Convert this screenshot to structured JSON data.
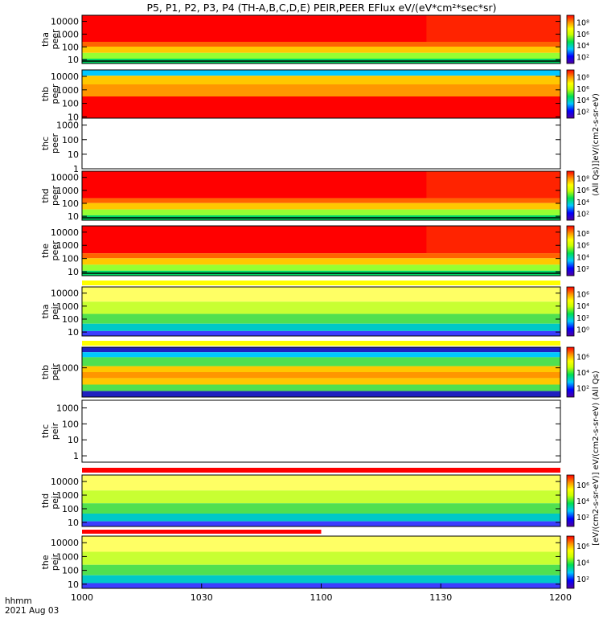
{
  "title": "P5, P1, P2, P3, P4 (TH-A,B,C,D,E) PEIR,PEER EFlux eV/(eV*cm²*sec*sr)",
  "colorbar_label_top": "(All Qs)]]eV/(cm2-s-sr-eV)",
  "colorbar_label_bottom": "[eV/(cm2-s-sr-eV)] eV/(cm2-s-sr-eV) (All Qs)",
  "x_footer": {
    "unit": "hhmm",
    "date": "2021 Aug 03"
  },
  "chart_data": {
    "type": "heatmap",
    "x": {
      "ticks": [
        "1000",
        "1030",
        "1100",
        "1130",
        "1200"
      ],
      "range": [
        "1000",
        "1200"
      ]
    },
    "panels": [
      {
        "id": "tha_peer",
        "line1": "tha",
        "line2": "peer",
        "yticks": [
          "10000",
          "1000",
          "100",
          "10"
        ],
        "ylog": true,
        "yrange": [
          5,
          30000
        ],
        "cb_ticks": [
          "10⁸",
          "10⁶",
          "10⁴",
          "10²"
        ],
        "band": null
      },
      {
        "id": "thb_peer",
        "line1": "thb",
        "line2": "peer",
        "yticks": [
          "10000",
          "1000",
          "100",
          "10"
        ],
        "ylog": true,
        "yrange": [
          8,
          30000
        ],
        "cb_ticks": [
          "10⁸",
          "10⁶",
          "10⁴",
          "10²"
        ],
        "band": null
      },
      {
        "id": "thc_peer",
        "line1": "thc",
        "line2": "peer",
        "yticks": [
          "1000",
          "100",
          "10",
          "1"
        ],
        "ylog": true,
        "yrange": [
          1,
          3000
        ],
        "cb_ticks": [],
        "band": null,
        "empty": true
      },
      {
        "id": "thd_peer",
        "line1": "thd",
        "line2": "peer",
        "yticks": [
          "10000",
          "1000",
          "100",
          "10"
        ],
        "ylog": true,
        "yrange": [
          5,
          30000
        ],
        "cb_ticks": [
          "10⁸",
          "10⁶",
          "10⁴",
          "10²"
        ],
        "band": null
      },
      {
        "id": "the_peer",
        "line1": "the",
        "line2": "peer",
        "yticks": [
          "10000",
          "1000",
          "100",
          "10"
        ],
        "ylog": true,
        "yrange": [
          5,
          30000
        ],
        "cb_ticks": [
          "10⁸",
          "10⁶",
          "10⁴",
          "10²"
        ],
        "band": null
      },
      {
        "id": "tha_peir",
        "line1": "tha",
        "line2": "peir",
        "yticks": [
          "10000",
          "1000",
          "100",
          "10"
        ],
        "ylog": true,
        "yrange": [
          5,
          30000
        ],
        "cb_ticks": [
          "10⁶",
          "10⁴",
          "10²",
          "10⁰"
        ],
        "band": {
          "color": "#ffff00",
          "extent": 1.0
        }
      },
      {
        "id": "thb_peir",
        "line1": "thb",
        "line2": "peir",
        "yticks": [
          "1000"
        ],
        "ylog": true,
        "yrange": [
          8,
          30000
        ],
        "cb_ticks": [
          "10⁶",
          "10⁴",
          "10²"
        ],
        "band": {
          "color": "#ffff00",
          "extent": 1.0
        }
      },
      {
        "id": "thc_peir",
        "line1": "thc",
        "line2": "peir",
        "yticks": [
          "1000",
          "100",
          "10",
          "1"
        ],
        "ylog": true,
        "yrange": [
          0.4,
          3000
        ],
        "cb_ticks": [],
        "band": null,
        "empty": true
      },
      {
        "id": "thd_peir",
        "line1": "thd",
        "line2": "peir",
        "yticks": [
          "10000",
          "1000",
          "100",
          "10"
        ],
        "ylog": true,
        "yrange": [
          5,
          30000
        ],
        "cb_ticks": [
          "10⁶",
          "10⁴",
          "10²"
        ],
        "band": {
          "color": "#ff0000",
          "extent": 1.0
        }
      },
      {
        "id": "the_peir",
        "line1": "the",
        "line2": "peir",
        "yticks": [
          "10000",
          "1000",
          "100",
          "10"
        ],
        "ylog": true,
        "yrange": [
          5,
          30000
        ],
        "cb_ticks": [
          "10⁶",
          "10⁴",
          "10²"
        ],
        "band": {
          "color": "#ff0000",
          "extent": 0.5
        }
      }
    ]
  }
}
